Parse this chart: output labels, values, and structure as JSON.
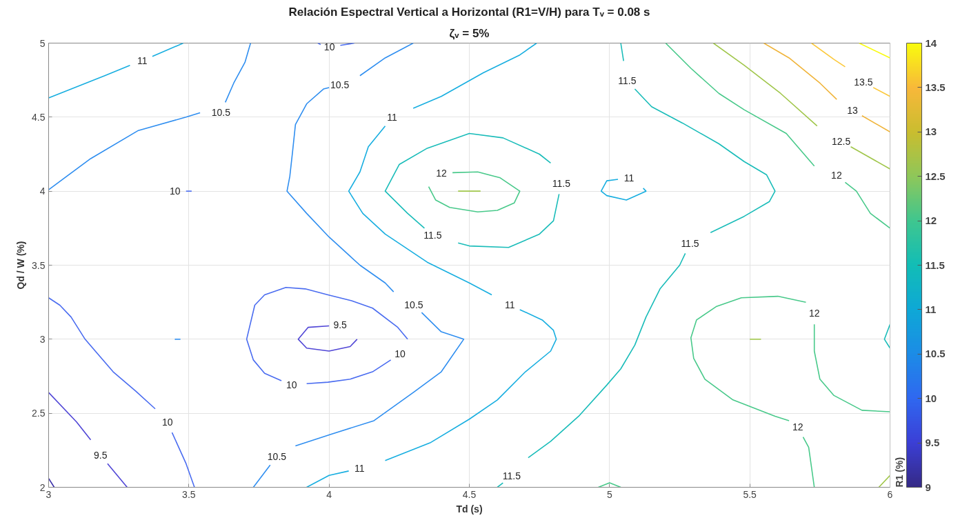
{
  "chart_data": {
    "type": "line",
    "title": "Relación Espectral Vertical a Horizontal (R1=V/H) para Tᵥ = 0.08 s",
    "subtitle": "ζᵥ = 5%",
    "xlabel": "Td (s)",
    "ylabel": "Qd / W (%)",
    "clabel": "R1 (%)",
    "xlim": [
      3,
      6
    ],
    "ylim": [
      2,
      5
    ],
    "xticks": [
      3,
      3.5,
      4,
      4.5,
      5,
      5.5,
      6
    ],
    "yticks": [
      2,
      2.5,
      3,
      3.5,
      4,
      4.5,
      5
    ],
    "clim": [
      9,
      14
    ],
    "cticks": [
      9,
      9.5,
      10,
      10.5,
      11,
      11.5,
      12,
      12.5,
      13,
      13.5,
      14
    ],
    "grid": true,
    "series": [
      {
        "color": "#17aee0",
        "x": [
          3,
          3.2,
          3.29
        ],
        "values": [
          4.63,
          4.78,
          4.85
        ]
      },
      {
        "name": "11",
        "color": "#17aee0",
        "x": [
          3.37,
          3.48
        ],
        "values": [
          4.91,
          5
        ]
      },
      {
        "color": "#2f8ef0",
        "x": [
          3,
          3.15,
          3.32,
          3.49,
          3.54
        ],
        "values": [
          4.01,
          4.22,
          4.41,
          4.5,
          4.53
        ]
      },
      {
        "name": "10.5",
        "color": "#2f8ef0",
        "x": [
          3.63,
          3.66,
          3.7,
          3.72
        ],
        "values": [
          4.6,
          4.73,
          4.87,
          5
        ]
      },
      {
        "color": "#4a6cf0",
        "x": [
          3.96,
          3.97
        ],
        "values": [
          5,
          4.99
        ]
      },
      {
        "name": "10",
        "color": "#4a6cf0",
        "x": [
          4.04,
          4.09
        ],
        "values": [
          4.985,
          5
        ]
      },
      {
        "name": "10",
        "color": "#4a6cf0",
        "x": [
          3.49,
          3.51
        ],
        "values": [
          4.0,
          4.0
        ]
      },
      {
        "color": "#2f8ef0",
        "x": [
          4.3,
          4.2,
          4.11
        ],
        "values": [
          5,
          4.9,
          4.78
        ]
      },
      {
        "name": "10.5",
        "color": "#2f8ef0",
        "x": [
          4.0,
          3.98,
          3.92,
          3.88,
          3.87,
          3.86,
          3.85,
          3.92,
          4.0,
          4.11,
          4.2,
          4.23
        ],
        "values": [
          4.7,
          4.69,
          4.59,
          4.45,
          4.27,
          4.1,
          4.0,
          3.85,
          3.69,
          3.5,
          3.38,
          3.32
        ]
      },
      {
        "name": "10.5",
        "color": "#2f8ef0",
        "x": [
          4.33,
          4.4,
          4.48,
          4.4,
          4.3,
          4.16,
          4.01,
          3.88
        ],
        "values": [
          3.18,
          3.05,
          3.0,
          2.78,
          2.64,
          2.45,
          2.36,
          2.28
        ]
      },
      {
        "name": "10.5",
        "color": "#2f8ef0",
        "x": [
          3.79,
          3.73
        ],
        "values": [
          2.15,
          2
        ]
      },
      {
        "color": "#17aee0",
        "x": [
          4.74,
          4.68,
          4.55,
          4.4,
          4.3
        ],
        "values": [
          5,
          4.92,
          4.8,
          4.64,
          4.56
        ]
      },
      {
        "name": "11",
        "color": "#17aee0",
        "x": [
          4.2,
          4.14,
          4.11,
          4.07,
          4.12,
          4.2,
          4.35,
          4.5,
          4.58
        ],
        "values": [
          4.44,
          4.3,
          4.13,
          4.0,
          3.85,
          3.71,
          3.52,
          3.38,
          3.3
        ]
      },
      {
        "name": "11",
        "color": "#17aee0",
        "x": [
          4.68,
          4.76,
          4.8,
          4.81,
          4.79,
          4.7,
          4.6,
          4.5,
          4.36,
          4.2
        ],
        "values": [
          3.2,
          3.13,
          3.06,
          3.0,
          2.92,
          2.78,
          2.59,
          2.46,
          2.3,
          2.18
        ]
      },
      {
        "name": "11",
        "color": "#17aee0",
        "x": [
          4.07,
          4.0,
          3.92
        ],
        "values": [
          2.11,
          2.08,
          2.0
        ]
      },
      {
        "name": "11.5",
        "color": "#19bcb9",
        "x": [
          4.82,
          4.8,
          4.75,
          4.64,
          4.5,
          4.46
        ],
        "values": [
          3.98,
          3.8,
          3.71,
          3.62,
          3.63,
          3.65
        ]
      },
      {
        "name": "11.5",
        "color": "#19bcb9",
        "x": [
          4.34,
          4.28,
          4.2,
          4.25,
          4.35,
          4.5,
          4.62,
          4.75,
          4.79
        ],
        "values": [
          3.75,
          3.85,
          4.0,
          4.18,
          4.29,
          4.39,
          4.36,
          4.25,
          4.19
        ]
      },
      {
        "name": "12",
        "color": "#48c98a",
        "x": [
          4.44,
          4.53,
          4.61,
          4.68,
          4.66,
          4.6,
          4.53,
          4.43,
          4.38,
          4.355
        ],
        "values": [
          4.125,
          4.13,
          4.09,
          4.0,
          3.92,
          3.87,
          3.86,
          3.89,
          3.94,
          4.03
        ]
      },
      {
        "color": "#a0c64a",
        "x": [
          4.46,
          4.54
        ],
        "values": [
          4.0,
          4.0
        ]
      },
      {
        "name": "11",
        "color": "#17aee0",
        "x": [
          5.03,
          4.99,
          4.97,
          4.99,
          5.06,
          5.13,
          5.12
        ],
        "values": [
          4.08,
          4.07,
          4.0,
          3.97,
          3.94,
          4.0,
          4.02
        ]
      },
      {
        "color": "#19bcb9",
        "x": [
          5.04,
          5.05
        ],
        "values": [
          5,
          4.88
        ]
      },
      {
        "name": "11.5",
        "color": "#19bcb9",
        "x": [
          5.09,
          5.15,
          5.26,
          5.39,
          5.48,
          5.56,
          5.59,
          5.57,
          5.48,
          5.36
        ],
        "values": [
          4.69,
          4.57,
          4.46,
          4.32,
          4.2,
          4.11,
          4.0,
          3.93,
          3.83,
          3.72
        ]
      },
      {
        "name": "11.5",
        "color": "#19bcb9",
        "x": [
          5.27,
          5.25,
          5.18,
          5.13,
          5.09,
          5.04,
          4.99,
          4.89,
          4.79,
          4.71
        ],
        "values": [
          3.58,
          3.5,
          3.34,
          3.15,
          2.96,
          2.8,
          2.69,
          2.48,
          2.31,
          2.2
        ]
      },
      {
        "name": "11.5",
        "color": "#19bcb9",
        "x": [
          4.62,
          4.6
        ],
        "values": [
          2.03,
          2.0
        ]
      },
      {
        "color": "#48c98a",
        "x": [
          5.2,
          5.29,
          5.39,
          5.48,
          5.63,
          5.73
        ],
        "values": [
          5,
          4.83,
          4.66,
          4.55,
          4.39,
          4.17
        ]
      },
      {
        "name": "12",
        "color": "#48c98a",
        "x": [
          5.84,
          5.88,
          5.93,
          6
        ],
        "values": [
          4.06,
          4.0,
          3.85,
          3.75
        ]
      },
      {
        "color": "#a0c64a",
        "x": [
          5.37,
          5.48,
          5.61,
          5.74
        ],
        "values": [
          5,
          4.85,
          4.66,
          4.44
        ]
      },
      {
        "name": "12.5",
        "color": "#a0c64a",
        "x": [
          5.86,
          6
        ],
        "values": [
          4.3,
          4.15
        ]
      },
      {
        "color": "#f0b43a",
        "x": [
          5.55,
          5.64,
          5.75,
          5.81
        ],
        "values": [
          5,
          4.9,
          4.73,
          4.62
        ]
      },
      {
        "name": "13",
        "color": "#f0b43a",
        "x": [
          5.9,
          6
        ],
        "values": [
          4.51,
          4.4
        ]
      },
      {
        "color": "#fcc83a",
        "x": [
          5.72,
          5.8,
          5.84
        ],
        "values": [
          5,
          4.89,
          4.84
        ]
      },
      {
        "name": "13.5",
        "color": "#fcc83a",
        "x": [
          5.94,
          6
        ],
        "values": [
          4.7,
          4.64
        ]
      },
      {
        "color": "#f9fb0e",
        "x": [
          5.89,
          6
        ],
        "values": [
          5,
          4.9
        ]
      },
      {
        "name": "12",
        "color": "#48c98a",
        "x": [
          5.73,
          5.73,
          5.75,
          5.8,
          5.9,
          6
        ],
        "values": [
          3.1,
          2.92,
          2.73,
          2.62,
          2.52,
          2.51
        ]
      },
      {
        "color": "#48c98a",
        "x": [
          5.7,
          5.6,
          5.47,
          5.38,
          5.31,
          5.29,
          5.3,
          5.34,
          5.44,
          5.59,
          5.64
        ],
        "values": [
          3.25,
          3.29,
          3.28,
          3.22,
          3.13,
          3.01,
          2.87,
          2.73,
          2.59,
          2.48,
          2.45
        ]
      },
      {
        "name": "12",
        "color": "#48c98a",
        "x": [
          5.69,
          5.71,
          5.73
        ],
        "values": [
          2.34,
          2.27,
          2.0
        ]
      },
      {
        "color": "#a0c64a",
        "x": [
          5.5,
          5.54
        ],
        "values": [
          3.0,
          3.0
        ]
      },
      {
        "color": "#19bcb9",
        "x": [
          6,
          5.98,
          6
        ],
        "values": [
          3.1,
          3.0,
          2.94
        ]
      },
      {
        "color": "#48c98a",
        "x": [
          4.96,
          5.0,
          5.04
        ],
        "values": [
          2.0,
          2.03,
          2.0
        ]
      },
      {
        "color": "#a0c64a",
        "x": [
          5.96,
          6
        ],
        "values": [
          2.0,
          2.08
        ]
      },
      {
        "color": "#4a6cf0",
        "x": [
          3,
          3.04,
          3.08,
          3.13,
          3.23,
          3.31,
          3.38
        ],
        "values": [
          3.28,
          3.23,
          3.15,
          3.0,
          2.78,
          2.65,
          2.53
        ]
      },
      {
        "name": "10",
        "color": "#4a6cf0",
        "x": [
          3.44,
          3.49,
          3.52
        ],
        "values": [
          2.37,
          2.16,
          2.0
        ]
      },
      {
        "color": "#5046d6",
        "x": [
          3,
          3.1,
          3.15
        ],
        "values": [
          2.64,
          2.44,
          2.32
        ]
      },
      {
        "name": "9.5",
        "color": "#5046d6",
        "x": [
          3.21,
          3.28
        ],
        "values": [
          2.16,
          2.0
        ]
      },
      {
        "color": "#3b2fa8",
        "x": [
          3,
          3.02
        ],
        "values": [
          2.06,
          2.0
        ]
      },
      {
        "color": "#2f8ef0",
        "x": [
          3.45,
          3.47
        ],
        "values": [
          3.0,
          3.0
        ]
      },
      {
        "name": "10",
        "color": "#4a6cf0",
        "x": [
          4.22,
          4.155,
          4.075,
          3.996,
          3.92
        ],
        "values": [
          2.86,
          2.78,
          2.73,
          2.71,
          2.7
        ]
      },
      {
        "name": "10",
        "color": "#4a6cf0",
        "x": [
          3.83,
          3.77,
          3.73,
          3.706,
          3.735,
          3.77,
          3.846,
          3.915,
          3.996,
          4.08,
          4.155,
          4.245,
          4.28
        ],
        "values": [
          2.72,
          2.77,
          2.86,
          3.0,
          3.23,
          3.3,
          3.35,
          3.34,
          3.3,
          3.26,
          3.21,
          3.08,
          3.0
        ]
      },
      {
        "name": "9.5",
        "color": "#5046d6",
        "x": [
          4.0,
          3.925,
          3.89,
          3.92,
          4.0,
          4.075,
          4.1
        ],
        "values": [
          3.09,
          3.08,
          3.0,
          2.94,
          2.92,
          2.95,
          3.0
        ]
      }
    ]
  }
}
